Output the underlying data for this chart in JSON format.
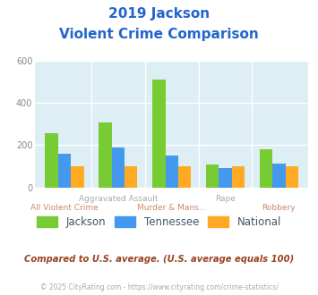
{
  "title_line1": "2019 Jackson",
  "title_line2": "Violent Crime Comparison",
  "categories": [
    "All Violent Crime",
    "Aggravated Assault",
    "Murder & Mans...",
    "Rape",
    "Robbery"
  ],
  "jackson": [
    255,
    305,
    510,
    110,
    182
  ],
  "tennessee": [
    160,
    190,
    150,
    93,
    113
  ],
  "national": [
    100,
    100,
    100,
    100,
    100
  ],
  "jackson_color": "#77cc33",
  "tennessee_color": "#4499ee",
  "national_color": "#ffaa22",
  "bg_color": "#ddeef5",
  "ylim": [
    0,
    600
  ],
  "yticks": [
    0,
    200,
    400,
    600
  ],
  "title_color": "#2266cc",
  "xtick_color_top": "#aaaaaa",
  "xtick_color_bottom": "#cc8866",
  "subtitle": "Compared to U.S. average. (U.S. average equals 100)",
  "subtitle_color": "#994422",
  "footer": "© 2025 CityRating.com - https://www.cityrating.com/crime-statistics/",
  "footer_color": "#aaaaaa",
  "legend_labels": [
    "Jackson",
    "Tennessee",
    "National"
  ],
  "legend_color": "#445566"
}
